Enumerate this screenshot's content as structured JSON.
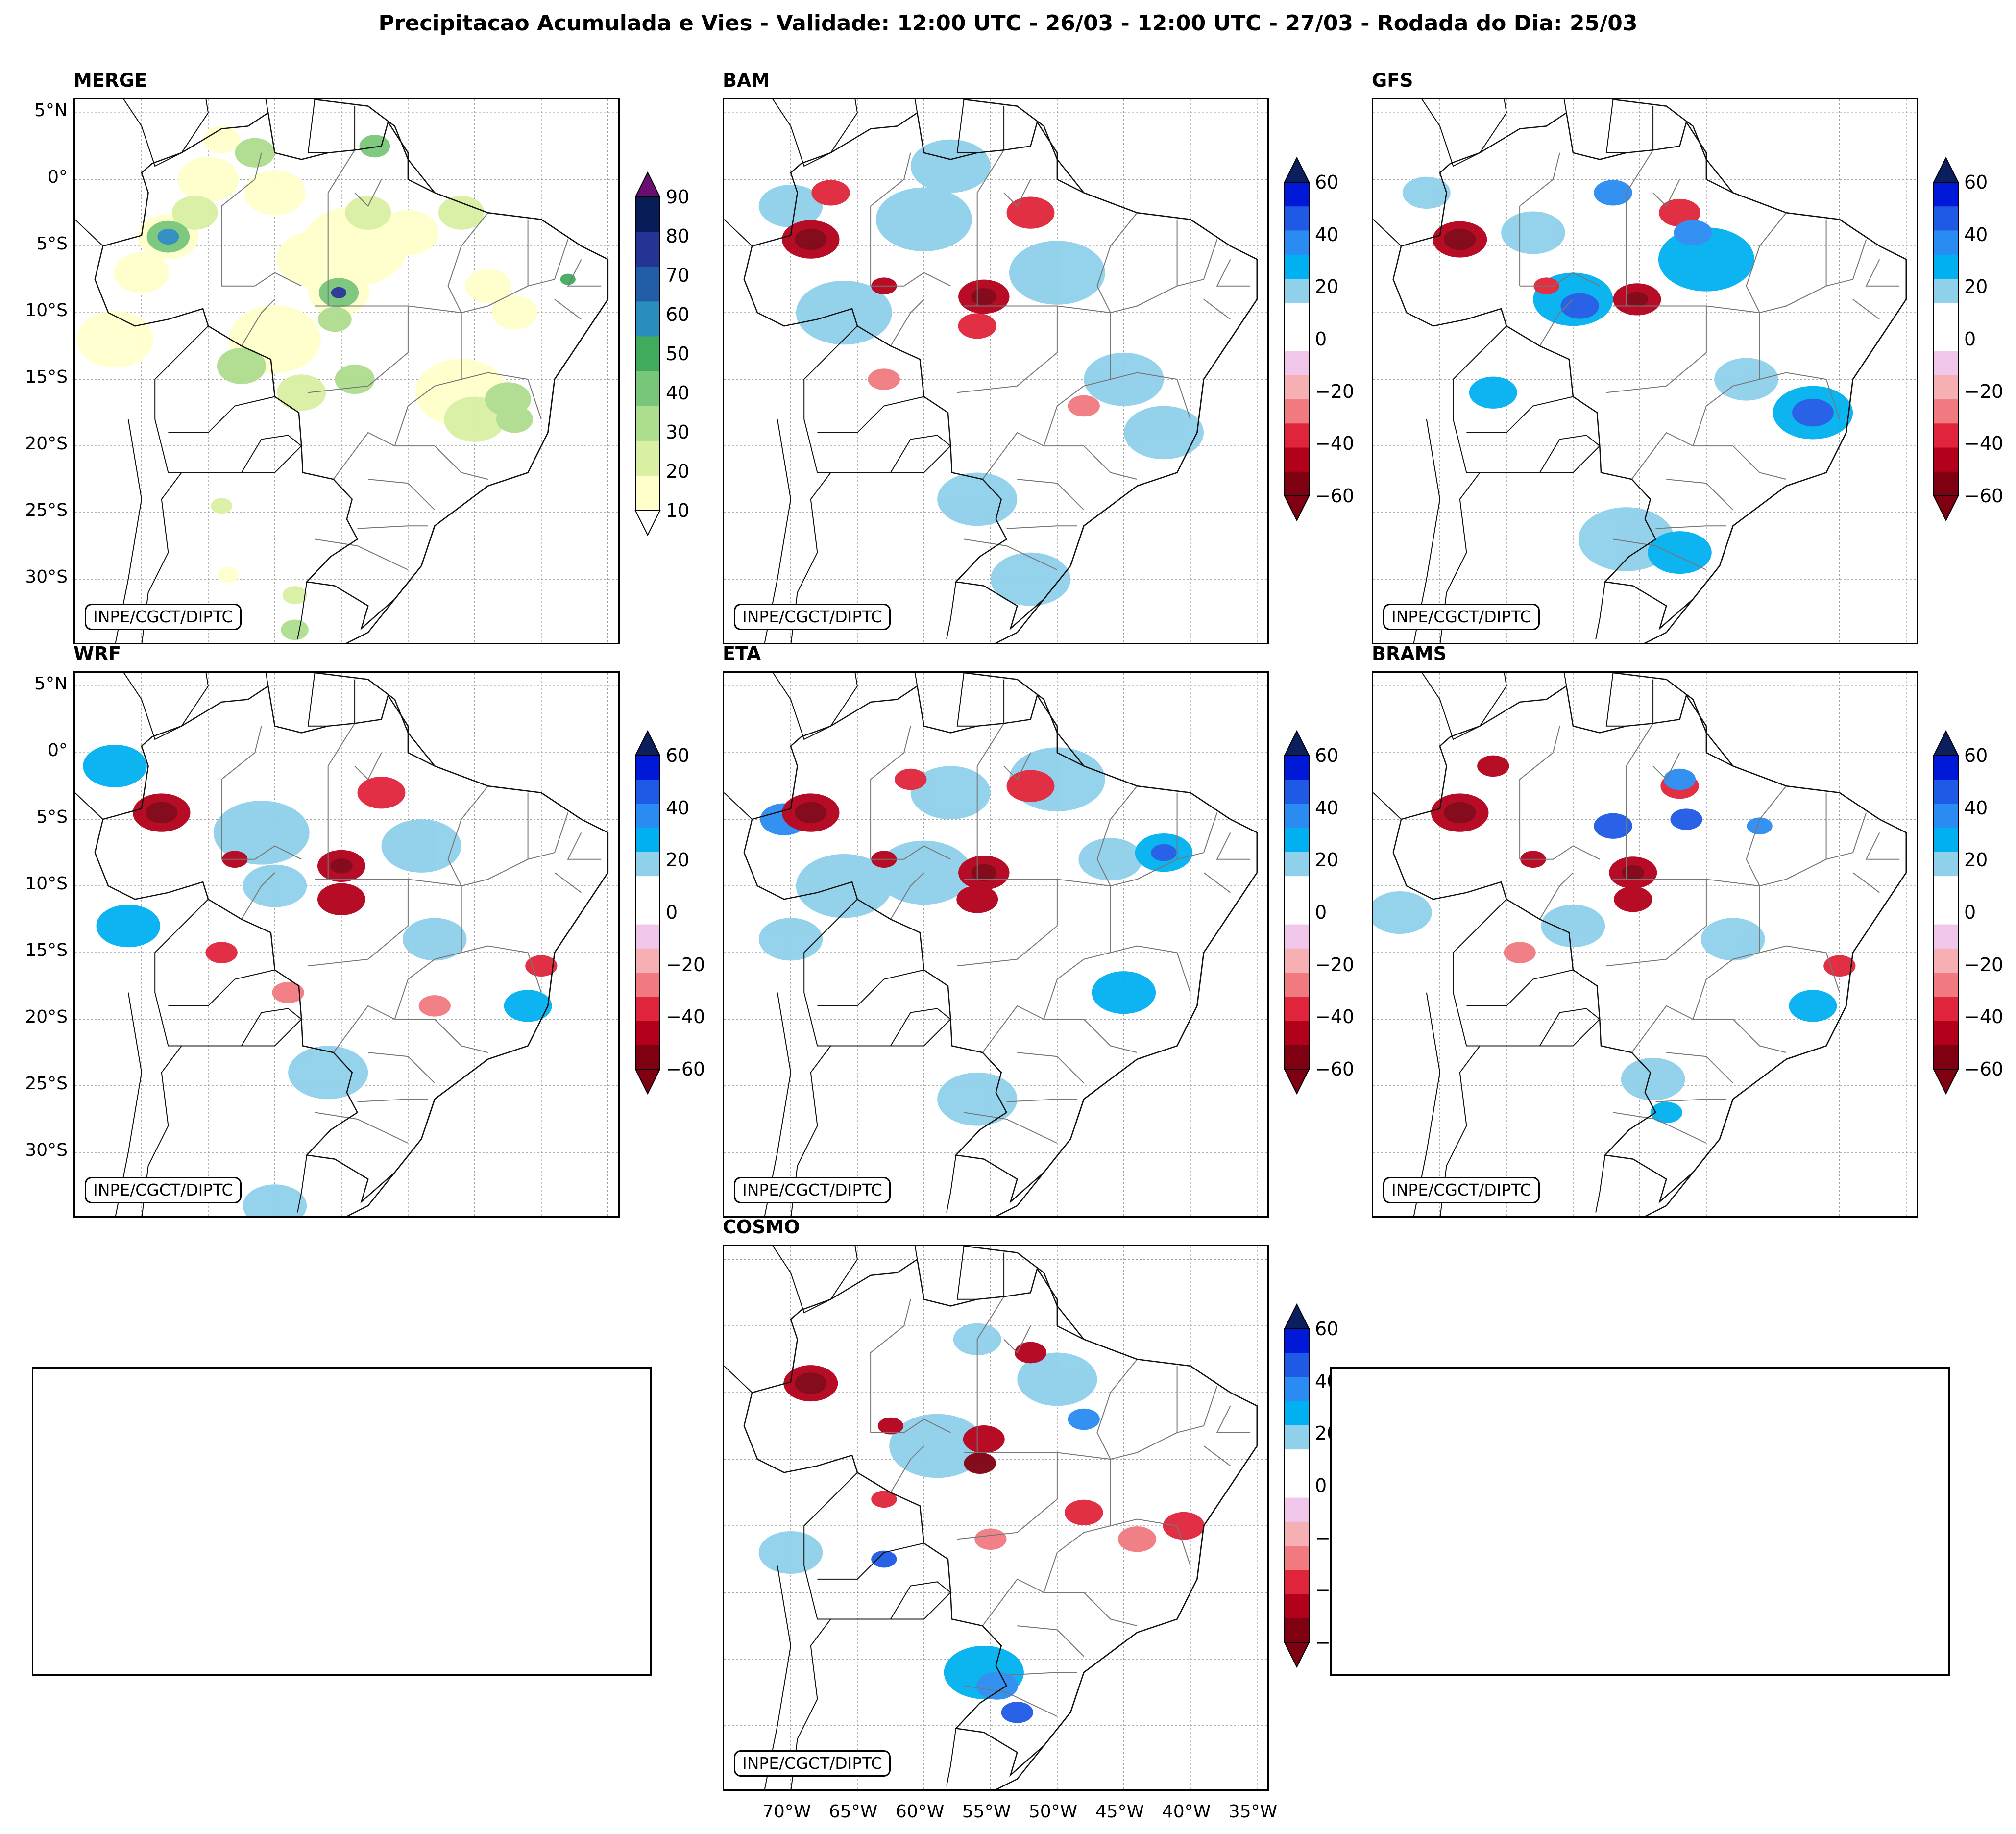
{
  "title": "Precipitacao Acumulada e Vies - Validade: 12:00 UTC - 26/03 - 12:00 UTC - 27/03 - Rodada do Dia: 25/03",
  "credit": "INPE/CGCT/DIPTC",
  "lat_labels": [
    "5°N",
    "0°",
    "5°S",
    "10°S",
    "15°S",
    "20°S",
    "25°S",
    "30°S"
  ],
  "lon_labels": [
    "70°W",
    "65°W",
    "60°W",
    "55°W",
    "50°W",
    "45°W",
    "40°W",
    "35°W"
  ],
  "panels": [
    {
      "name": "MERGE",
      "type": "precipitation"
    },
    {
      "name": "BAM",
      "type": "bias"
    },
    {
      "name": "GFS",
      "type": "bias"
    },
    {
      "name": "WRF",
      "type": "bias"
    },
    {
      "name": "ETA",
      "type": "bias"
    },
    {
      "name": "BRAMS",
      "type": "bias"
    },
    {
      "name": "COSMO",
      "type": "bias"
    }
  ],
  "precip_colorbar": {
    "ticks": [
      "90",
      "80",
      "70",
      "60",
      "50",
      "40",
      "30",
      "20",
      "10"
    ],
    "colors": [
      "#ffffcc",
      "#d9f0a3",
      "#addd8e",
      "#78c679",
      "#41ab5d",
      "#2b8cbe",
      "#225ea8",
      "#253494",
      "#081d58"
    ],
    "over_color": "#6a0f70"
  },
  "bias_colorbar": {
    "ticks": [
      "60",
      "40",
      "20",
      "0",
      "−20",
      "−40",
      "−60"
    ],
    "colors": [
      "#7f0010",
      "#b3001b",
      "#e0243b",
      "#f07a80",
      "#f6b0b4",
      "#f0c6ea",
      "#ffffff",
      "#ffffff",
      "#8fd0ea",
      "#00b0f0",
      "#2a8cf2",
      "#1f5ae6",
      "#0018d8"
    ],
    "over_color": "#0b1e5e",
    "under_color": "#7f0010"
  }
}
